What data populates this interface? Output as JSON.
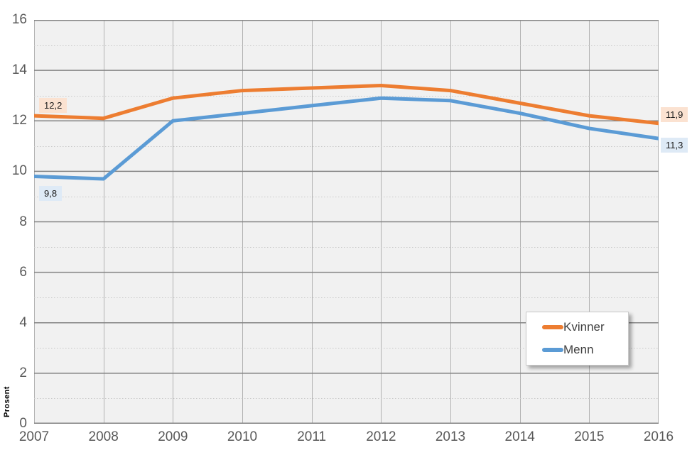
{
  "chart_data": {
    "type": "line",
    "title": "",
    "ylabel": "Prosent",
    "xlabel": "",
    "ylim": [
      0,
      16
    ],
    "y_major_step": 2,
    "y_minor_step": 1,
    "grid": true,
    "legend_position": "inside-bottom-right",
    "categories": [
      "2007",
      "2008",
      "2009",
      "2010",
      "2011",
      "2012",
      "2013",
      "2014",
      "2015",
      "2016"
    ],
    "y_ticks": [
      "0",
      "2",
      "4",
      "6",
      "8",
      "10",
      "12",
      "14",
      "16"
    ],
    "series": [
      {
        "name": "Kvinner",
        "color": "#ED7D31",
        "label_bg": "#FBE2D1",
        "values": [
          12.2,
          12.1,
          12.9,
          13.2,
          13.3,
          13.4,
          13.2,
          12.7,
          12.2,
          11.9
        ]
      },
      {
        "name": "Menn",
        "color": "#5B9BD5",
        "label_bg": "#DEEAF6",
        "values": [
          9.8,
          9.7,
          12.0,
          12.3,
          12.6,
          12.9,
          12.8,
          12.3,
          11.7,
          11.3
        ]
      }
    ],
    "point_labels": [
      {
        "series": 0,
        "index": 0,
        "text": "12,2",
        "placement": "start-above"
      },
      {
        "series": 1,
        "index": 0,
        "text": "9,8",
        "placement": "start-below"
      },
      {
        "series": 0,
        "index": 9,
        "text": "11,9",
        "placement": "end-above"
      },
      {
        "series": 1,
        "index": 9,
        "text": "11,3",
        "placement": "end-below"
      }
    ],
    "colors": {
      "plot_background": "#F1F1F1",
      "major_gridline": "#848484",
      "minor_gridline": "#C8C8C8",
      "vertical_gridline": "#B2B2B2",
      "tick_label": "#595959",
      "legend_text": "#404040"
    }
  }
}
